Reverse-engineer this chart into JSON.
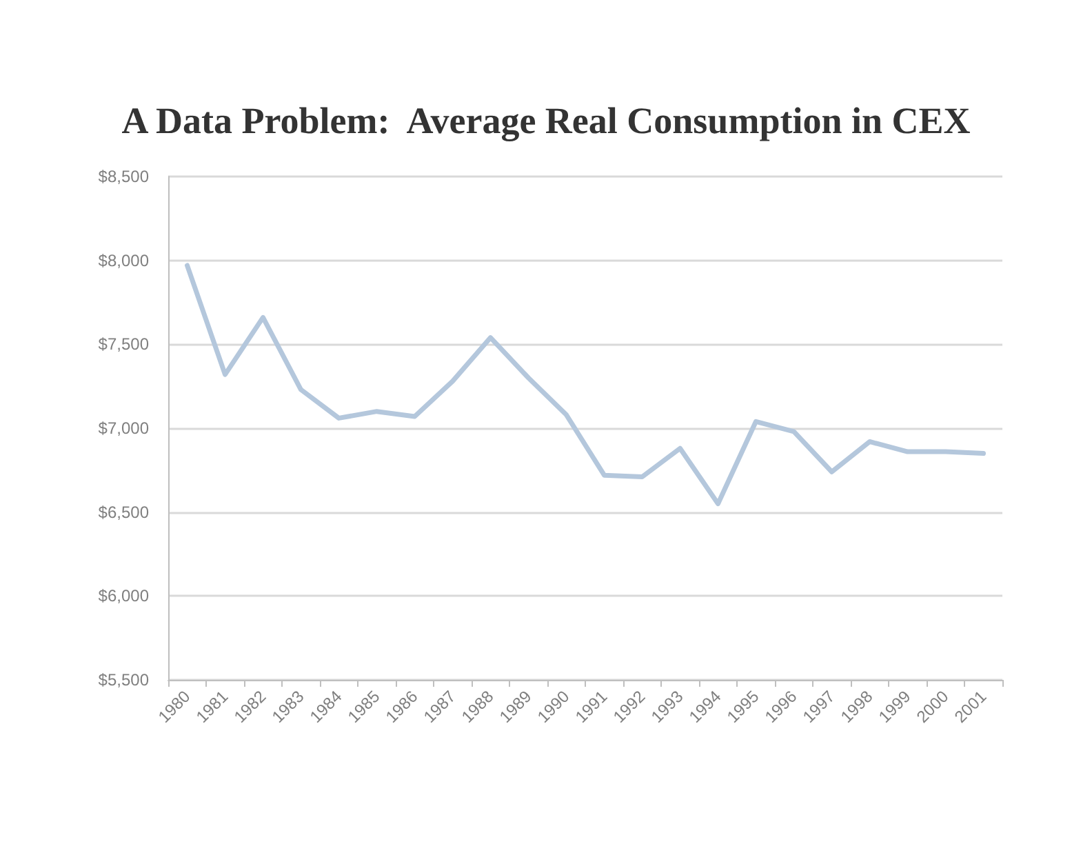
{
  "chart_data": {
    "type": "line",
    "title": "A Data Problem:  Average Real Consumption in CEX",
    "categories": [
      "1980",
      "1981",
      "1982",
      "1983",
      "1984",
      "1985",
      "1986",
      "1987",
      "1988",
      "1989",
      "1990",
      "1991",
      "1992",
      "1993",
      "1994",
      "1995",
      "1996",
      "1997",
      "1998",
      "1999",
      "2000",
      "2001"
    ],
    "values": [
      7970,
      7320,
      7660,
      7230,
      7060,
      7100,
      7070,
      7280,
      7540,
      7300,
      7080,
      6720,
      6710,
      6880,
      6550,
      7040,
      6980,
      6740,
      6920,
      6860,
      6860,
      6850
    ],
    "color": "#b4c7dc",
    "ylim": [
      5500,
      8500
    ],
    "yticks": [
      {
        "value": 5500,
        "label": "$5,500"
      },
      {
        "value": 6000,
        "label": "$6,000"
      },
      {
        "value": 6500,
        "label": "$6,500"
      },
      {
        "value": 7000,
        "label": "$7,000"
      },
      {
        "value": 7500,
        "label": "$7,500"
      },
      {
        "value": 8000,
        "label": "$8,000"
      },
      {
        "value": 8500,
        "label": "$8,500"
      }
    ],
    "grid": "y",
    "marker": "none",
    "line_style": "solid"
  }
}
